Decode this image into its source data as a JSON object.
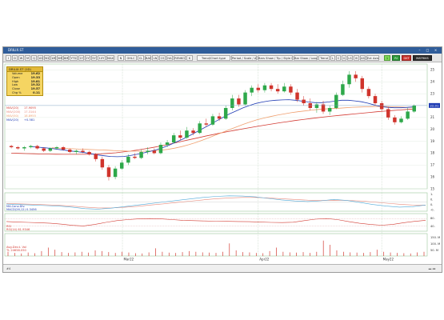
{
  "window": {
    "title": "DRILIX.ST"
  },
  "toolbar": {
    "left_buttons": [
      "I",
      "D",
      "W",
      "M",
      "Q",
      "1D",
      "5D",
      "1M",
      "3M",
      "6M",
      "YTD",
      "1Y",
      "2Y",
      "5Y",
      "10Y",
      "MAX"
    ],
    "segment_a": [
      "N",
      "OHLC",
      "CL",
      "BAR",
      "LN",
      "CS",
      "HA",
      "RENKO",
      "K"
    ],
    "mid_buttons": [
      "Trend/Chart type",
      "Period / Scale / Axis",
      "Bars Show / Tip / Style Panel",
      "Bar Show / Loop Style",
      "Trend",
      "L",
      "C",
      "G",
      "LS",
      "IS",
      "AS",
      "Ext Axis",
      "Sym Study Tool",
      "Scan settings"
    ],
    "right_buttons": [
      {
        "label": "1",
        "style": "lime"
      },
      {
        "label": "RI",
        "style": "green"
      },
      {
        "label": "GKT",
        "style": "red"
      },
      {
        "label": "MATRIKS",
        "style": "dark"
      }
    ]
  },
  "info_box": {
    "title": "DRILIX.ST (1D)",
    "rows": [
      {
        "key": "Volume",
        "value": "19.62"
      },
      {
        "key": "Open",
        "value": "19.33"
      },
      {
        "key": "High",
        "value": "19.81"
      },
      {
        "key": "Low",
        "value": "19.32"
      },
      {
        "key": "Close",
        "value": "19.57"
      },
      {
        "key": "Chg %",
        "value": "0.11"
      }
    ]
  },
  "ma_legend": [
    {
      "key": "MAV(20)",
      "value": "17.9095",
      "color": "#d33c34"
    },
    {
      "key": "MAV(200)",
      "value": "17.3144",
      "color": "#e88a7c"
    },
    {
      "key": "MAV(50)",
      "value": "18.8955",
      "color": "#f0a070"
    },
    {
      "key": "MAV(20)",
      "value": "+0.581",
      "color": "#1f3cb4"
    }
  ],
  "panels": {
    "macd": {
      "label": "MA.Conv.Div.",
      "sub_label": "MACD(26,12)",
      "sub_value": "0.3456",
      "color": "#1f3cb4"
    },
    "rsi": {
      "label": "RSI",
      "sub_label": "RSI(14)",
      "sub_value": "61.9346",
      "color": "#d33c34"
    },
    "volume": {
      "label": "Avg.Dev.t. Vol",
      "sub_label": "TL",
      "sub_value": "24658.050",
      "color": "#d33c34"
    }
  },
  "price_axis": {
    "ticks": [
      "25",
      "24",
      "23",
      "22",
      "21",
      "20",
      "19",
      "18",
      "17",
      "16",
      "15"
    ],
    "last_price": "22.01"
  },
  "panel_axes": {
    "macd": [
      "1.",
      "0.",
      "0.",
      "-0."
    ],
    "rsi": [
      "80.",
      "40."
    ],
    "volume": [
      "150. M",
      "100. M",
      "50. M"
    ]
  },
  "date_axis": [
    "Mar22",
    "Apr22",
    "May22"
  ],
  "statusbar": {
    "left": "#4",
    "right": "▴▴ ◂◂"
  },
  "colors": {
    "up": "#2ea84a",
    "down": "#d0342c",
    "ma_blue": "#1f3cb4",
    "ma_red": "#d33c34",
    "ma_orange": "#f0a070"
  },
  "chart_data": {
    "type": "candlestick",
    "ylim": [
      15,
      25.5
    ],
    "candles": [
      [
        18.6,
        18.7,
        18.4,
        18.5
      ],
      [
        18.5,
        18.6,
        18.3,
        18.4
      ],
      [
        18.4,
        18.6,
        18.2,
        18.5
      ],
      [
        18.5,
        18.7,
        18.4,
        18.6
      ],
      [
        18.6,
        18.7,
        18.3,
        18.4
      ],
      [
        18.4,
        18.5,
        18.1,
        18.2
      ],
      [
        18.2,
        18.5,
        18.1,
        18.4
      ],
      [
        18.4,
        18.6,
        18.3,
        18.5
      ],
      [
        18.5,
        18.6,
        18.2,
        18.3
      ],
      [
        18.3,
        18.4,
        18.0,
        18.1
      ],
      [
        18.1,
        18.3,
        17.9,
        18.2
      ],
      [
        18.2,
        18.4,
        18.0,
        18.1
      ],
      [
        18.1,
        18.2,
        17.8,
        17.9
      ],
      [
        17.9,
        18.0,
        17.3,
        17.5
      ],
      [
        17.5,
        17.7,
        16.6,
        16.8
      ],
      [
        16.8,
        17.0,
        15.7,
        16.0
      ],
      [
        16.0,
        16.9,
        15.8,
        16.7
      ],
      [
        16.7,
        17.4,
        16.6,
        17.2
      ],
      [
        17.2,
        17.9,
        17.0,
        17.7
      ],
      [
        17.7,
        18.0,
        17.5,
        17.6
      ],
      [
        17.6,
        18.3,
        17.5,
        18.1
      ],
      [
        18.1,
        18.5,
        17.9,
        18.2
      ],
      [
        18.2,
        18.4,
        17.9,
        18.0
      ],
      [
        18.0,
        18.9,
        17.9,
        18.7
      ],
      [
        18.7,
        19.1,
        18.5,
        18.9
      ],
      [
        18.9,
        19.7,
        18.8,
        19.5
      ],
      [
        19.5,
        19.9,
        19.1,
        19.3
      ],
      [
        19.3,
        20.2,
        19.2,
        19.9
      ],
      [
        19.9,
        20.1,
        19.5,
        19.7
      ],
      [
        19.7,
        20.7,
        19.6,
        20.5
      ],
      [
        20.5,
        20.9,
        20.2,
        20.4
      ],
      [
        20.4,
        21.3,
        20.3,
        21.1
      ],
      [
        21.1,
        21.4,
        20.7,
        20.9
      ],
      [
        20.9,
        22.0,
        20.8,
        21.8
      ],
      [
        21.8,
        22.9,
        21.6,
        22.6
      ],
      [
        22.6,
        22.9,
        21.9,
        22.1
      ],
      [
        22.1,
        23.3,
        22.0,
        23.1
      ],
      [
        23.1,
        23.7,
        22.8,
        23.5
      ],
      [
        23.5,
        23.8,
        23.1,
        23.3
      ],
      [
        23.3,
        23.9,
        23.1,
        23.7
      ],
      [
        23.7,
        23.9,
        23.2,
        23.4
      ],
      [
        23.4,
        23.8,
        23.0,
        23.2
      ],
      [
        23.2,
        23.9,
        23.1,
        23.6
      ],
      [
        23.6,
        23.8,
        22.9,
        23.1
      ],
      [
        23.1,
        23.4,
        22.3,
        22.5
      ],
      [
        22.5,
        22.8,
        22.0,
        22.2
      ],
      [
        22.2,
        22.6,
        21.6,
        21.8
      ],
      [
        21.8,
        22.3,
        21.4,
        22.1
      ],
      [
        22.1,
        22.4,
        21.3,
        21.5
      ],
      [
        21.5,
        22.0,
        21.2,
        21.8
      ],
      [
        21.8,
        23.1,
        21.7,
        22.9
      ],
      [
        22.9,
        24.1,
        22.8,
        23.8
      ],
      [
        23.8,
        24.9,
        23.5,
        24.6
      ],
      [
        24.6,
        24.9,
        24.0,
        24.3
      ],
      [
        24.3,
        24.5,
        23.1,
        23.4
      ],
      [
        23.4,
        23.6,
        22.6,
        22.8
      ],
      [
        22.8,
        23.0,
        22.0,
        22.2
      ],
      [
        22.2,
        22.4,
        21.5,
        21.7
      ],
      [
        21.7,
        21.9,
        20.8,
        21.0
      ],
      [
        21.0,
        21.2,
        20.4,
        20.6
      ],
      [
        20.6,
        21.1,
        20.5,
        20.9
      ],
      [
        20.9,
        21.8,
        20.8,
        21.5
      ],
      [
        21.5,
        22.1,
        21.4,
        22.0
      ]
    ],
    "ma_blue": [
      18.55,
      18.5,
      18.45,
      18.4,
      18.32,
      18.25,
      18.18,
      18.12,
      18.05,
      17.95,
      17.85,
      17.78,
      17.72,
      17.7,
      17.72,
      17.8,
      17.9,
      18.02,
      18.15,
      18.3,
      18.48,
      18.7,
      18.95,
      19.2,
      19.48,
      19.78,
      20.08,
      20.38,
      20.7,
      21.0,
      21.3,
      21.55,
      21.8,
      22.0,
      22.18,
      22.3,
      22.4,
      22.45,
      22.48,
      22.5,
      22.45,
      22.38,
      22.3,
      22.25,
      22.25,
      22.3,
      22.38,
      22.45,
      22.45,
      22.4,
      22.32,
      22.2,
      22.05,
      21.92,
      21.85,
      21.82,
      21.82,
      21.85,
      21.9
    ],
    "ma_orange": [
      18.45,
      18.42,
      18.4,
      18.37,
      18.34,
      18.32,
      18.3,
      18.27,
      18.25,
      18.22,
      18.2,
      18.18,
      18.17,
      18.16,
      18.17,
      18.2,
      18.25,
      18.32,
      18.42,
      18.55,
      18.7,
      18.88,
      19.08,
      19.3,
      19.52,
      19.75,
      19.98,
      20.2,
      20.42,
      20.62,
      20.8,
      20.95,
      21.08,
      21.2,
      21.3,
      21.4,
      21.48,
      21.55,
      21.62,
      21.68,
      21.72,
      21.75,
      21.78,
      21.82,
      21.86,
      21.88,
      21.9,
      21.92,
      21.93,
      21.92,
      21.9,
      21.88,
      21.85,
      21.85
    ],
    "ma_red": [
      18.0,
      17.98,
      17.96,
      17.95,
      17.93,
      17.92,
      17.91,
      17.9,
      17.9,
      17.9,
      17.9,
      17.92,
      17.94,
      17.98,
      18.03,
      18.1,
      18.18,
      18.27,
      18.37,
      18.48,
      18.6,
      18.73,
      18.87,
      19.01,
      19.15,
      19.29,
      19.43,
      19.56,
      19.69,
      19.81,
      19.93,
      20.04,
      20.15,
      20.26,
      20.36,
      20.46,
      20.56,
      20.65,
      20.74,
      20.82,
      20.9,
      20.98,
      21.05,
      21.12,
      21.18,
      21.24,
      21.3,
      21.36,
      21.42,
      21.48,
      21.53,
      21.58,
      21.63,
      21.68,
      21.72
    ],
    "macd_line": [
      0.1,
      0.05,
      0.0,
      -0.05,
      -0.1,
      -0.2,
      -0.35,
      -0.4,
      -0.3,
      -0.15,
      0.0,
      0.15,
      0.3,
      0.45,
      0.6,
      0.75,
      0.85,
      0.9,
      0.88,
      0.8,
      0.65,
      0.5,
      0.4,
      0.35,
      0.42,
      0.55,
      0.45,
      0.25,
      0.05,
      -0.1,
      -0.2,
      -0.15,
      0.0
    ],
    "macd_signal": [
      0.15,
      0.12,
      0.08,
      0.03,
      -0.03,
      -0.1,
      -0.2,
      -0.28,
      -0.28,
      -0.22,
      -0.12,
      0.0,
      0.12,
      0.25,
      0.38,
      0.5,
      0.62,
      0.7,
      0.75,
      0.75,
      0.7,
      0.62,
      0.55,
      0.48,
      0.45,
      0.47,
      0.46,
      0.4,
      0.3,
      0.18,
      0.08,
      0.0,
      -0.02
    ],
    "rsi": [
      55,
      52,
      50,
      48,
      45,
      40,
      33,
      30,
      38,
      50,
      60,
      66,
      70,
      72,
      70,
      66,
      62,
      60,
      58,
      57,
      56,
      55,
      54,
      52,
      50,
      49,
      51,
      60,
      68,
      72,
      66,
      55,
      45,
      38,
      34,
      38,
      48,
      56,
      62
    ],
    "volume": [
      30,
      22,
      18,
      25,
      20,
      35,
      60,
      45,
      28,
      22,
      26,
      30,
      24,
      40,
      35,
      28,
      22,
      30,
      25,
      20,
      18,
      26,
      55,
      30,
      24,
      22,
      28,
      35,
      30,
      26,
      24,
      22,
      30,
      90,
      40,
      28,
      26,
      22,
      20,
      35,
      60,
      30,
      26,
      24,
      28,
      22,
      30,
      110,
      80,
      40,
      30,
      26,
      24,
      22,
      28,
      45,
      30,
      25,
      22,
      20,
      18,
      26,
      30
    ]
  }
}
